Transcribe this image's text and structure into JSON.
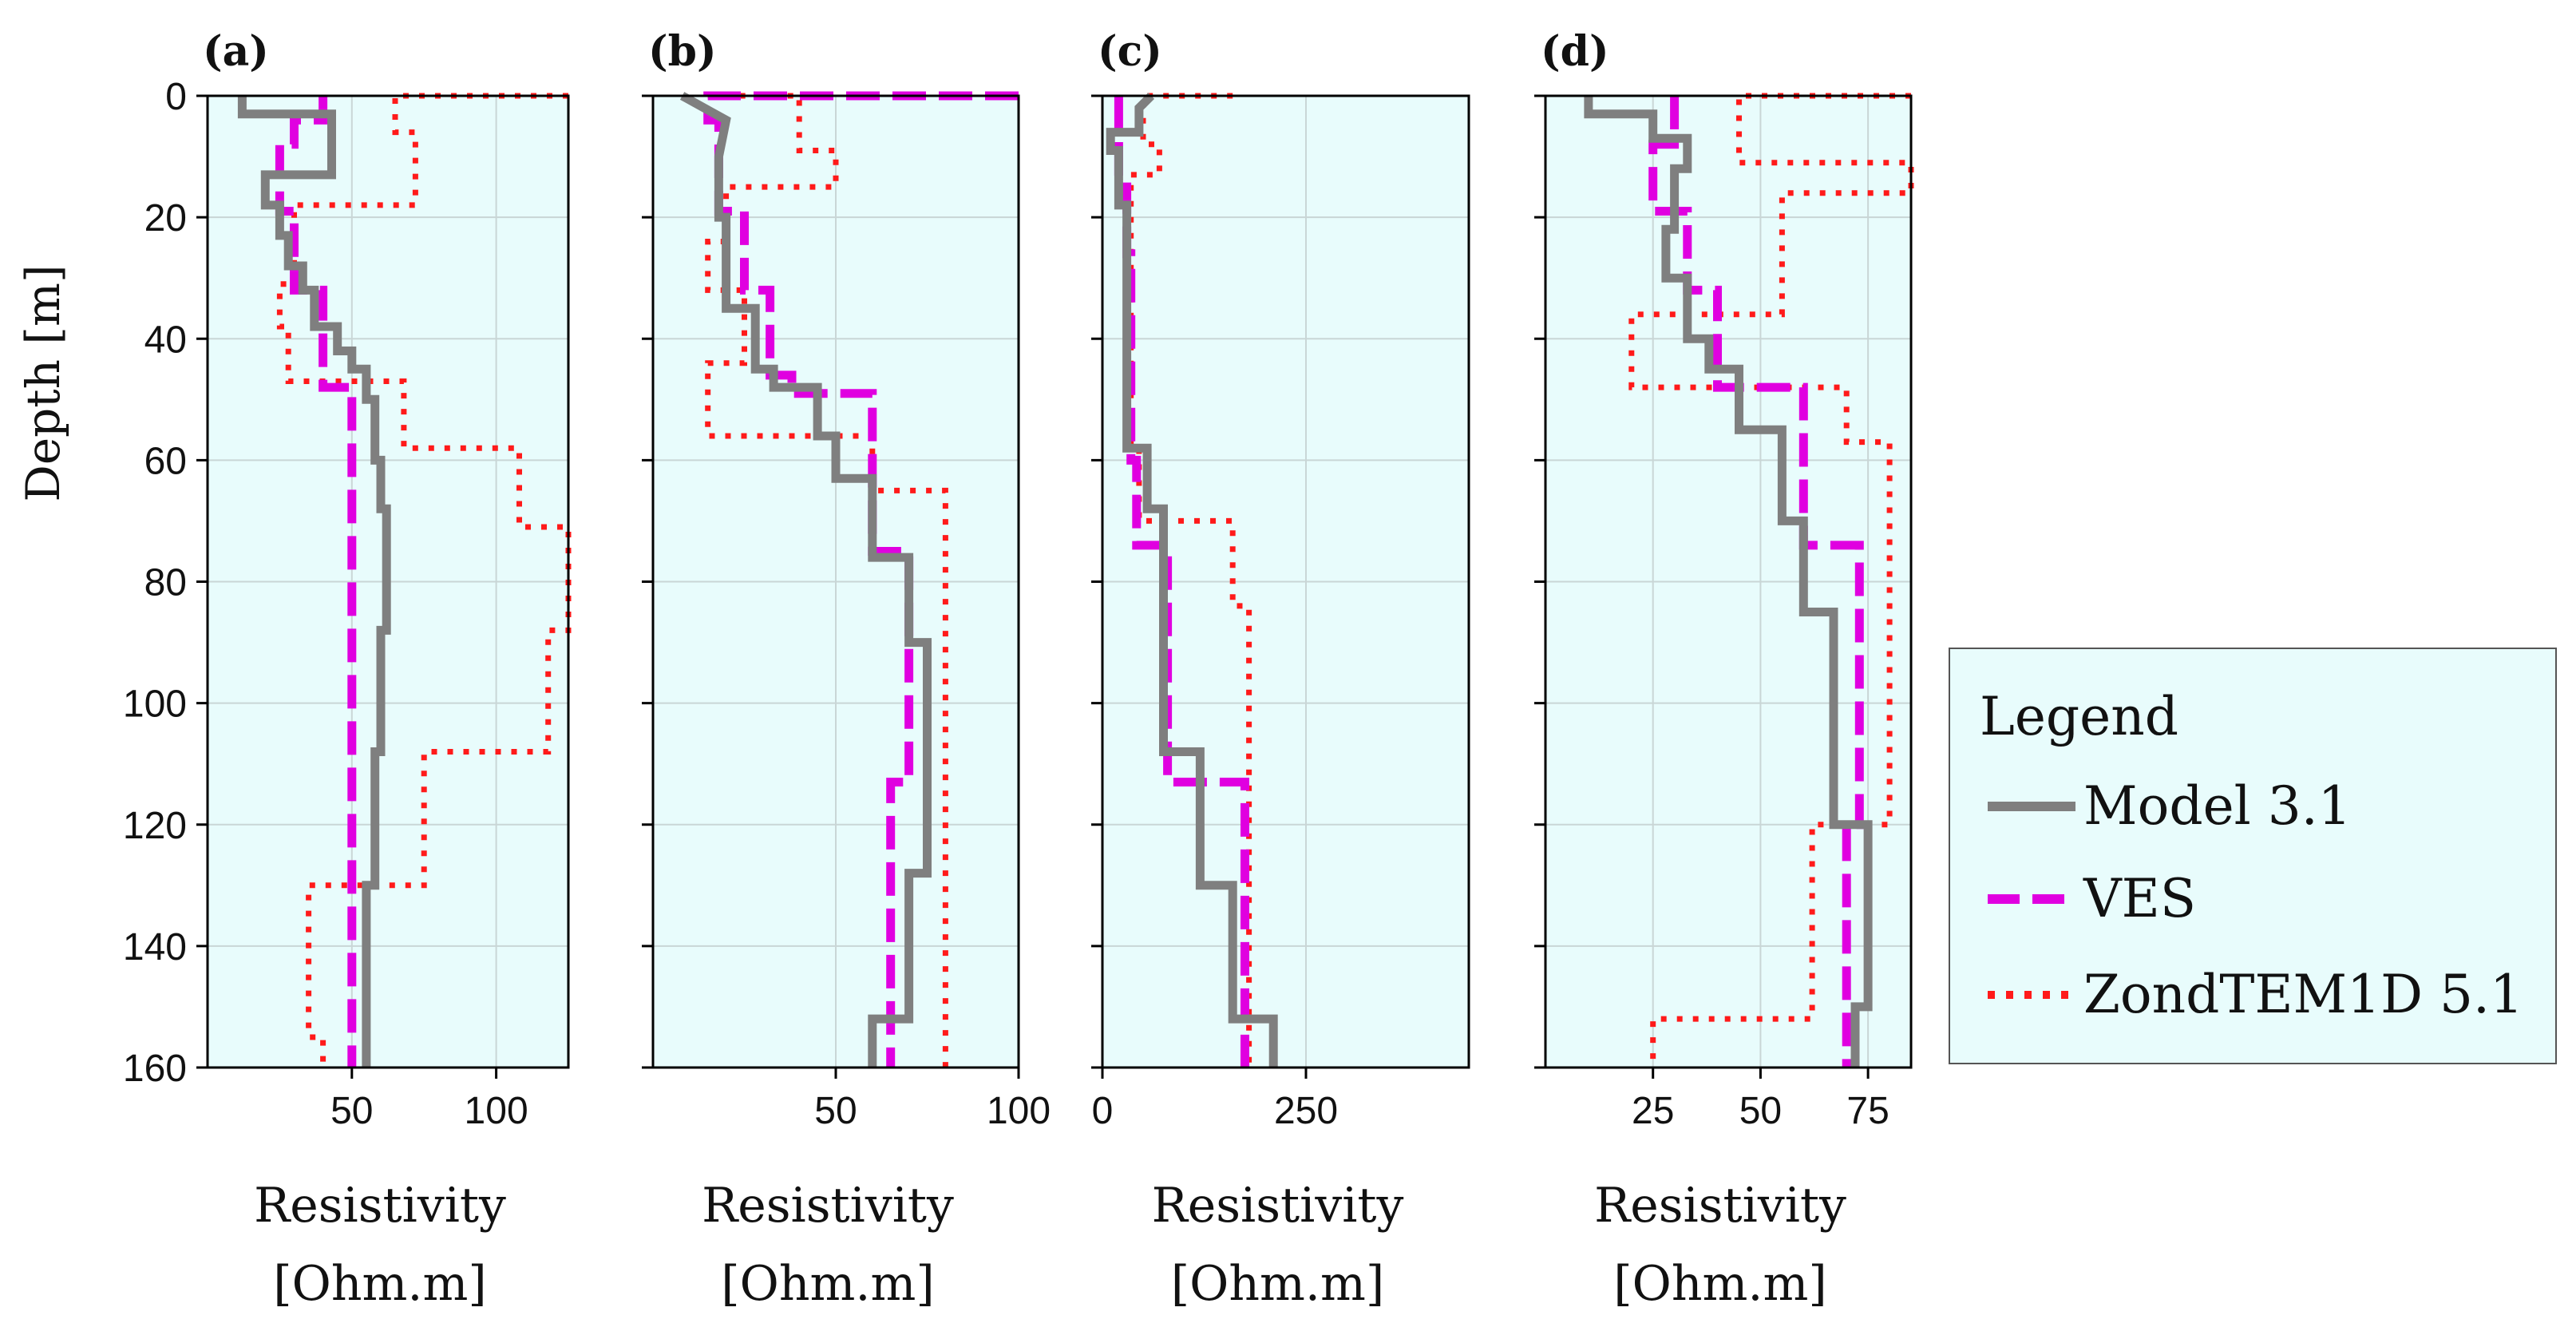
{
  "chart_data": [
    {
      "type": "line",
      "panel_label": "(a)",
      "ylabel": "Depth [m]",
      "xlabel_line1": "Resistivity",
      "xlabel_line2": "[Ohm.m]",
      "ylim": [
        0,
        160
      ],
      "xlim": [
        0,
        125
      ],
      "xticks": [
        50,
        100
      ],
      "yticks": [
        0,
        20,
        40,
        60,
        80,
        100,
        120,
        140,
        160
      ],
      "grid": true,
      "series": [
        {
          "name": "Model 3.1",
          "style": "solid",
          "values": [
            [
              12,
              0
            ],
            [
              12,
              3
            ],
            [
              43,
              3
            ],
            [
              43,
              13
            ],
            [
              20,
              13
            ],
            [
              20,
              18
            ],
            [
              25,
              18
            ],
            [
              25,
              23
            ],
            [
              28,
              23
            ],
            [
              28,
              28
            ],
            [
              33,
              28
            ],
            [
              33,
              32
            ],
            [
              37,
              32
            ],
            [
              37,
              38
            ],
            [
              45,
              38
            ],
            [
              45,
              42
            ],
            [
              50,
              42
            ],
            [
              50,
              45
            ],
            [
              55,
              45
            ],
            [
              55,
              50
            ],
            [
              58,
              50
            ],
            [
              58,
              60
            ],
            [
              60,
              60
            ],
            [
              60,
              68
            ],
            [
              62,
              68
            ],
            [
              62,
              88
            ],
            [
              60,
              88
            ],
            [
              60,
              108
            ],
            [
              58,
              108
            ],
            [
              58,
              130
            ],
            [
              55,
              130
            ],
            [
              55,
              160
            ]
          ]
        },
        {
          "name": "VES",
          "style": "dashed",
          "values": [
            [
              40,
              0
            ],
            [
              40,
              4
            ],
            [
              30,
              4
            ],
            [
              30,
              8
            ],
            [
              25,
              8
            ],
            [
              25,
              19
            ],
            [
              30,
              19
            ],
            [
              30,
              32
            ],
            [
              40,
              32
            ],
            [
              40,
              48
            ],
            [
              50,
              48
            ],
            [
              50,
              160
            ]
          ]
        },
        {
          "name": "ZondTEM1D 5.1",
          "style": "dotted",
          "values": [
            [
              125,
              0
            ],
            [
              65,
              0
            ],
            [
              65,
              6
            ],
            [
              72,
              6
            ],
            [
              72,
              18
            ],
            [
              30,
              18
            ],
            [
              30,
              31
            ],
            [
              25,
              31
            ],
            [
              25,
              38
            ],
            [
              28,
              38
            ],
            [
              28,
              47
            ],
            [
              68,
              47
            ],
            [
              68,
              58
            ],
            [
              108,
              58
            ],
            [
              108,
              71
            ],
            [
              125,
              71
            ],
            [
              125,
              88
            ],
            [
              118,
              88
            ],
            [
              118,
              108
            ],
            [
              75,
              108
            ],
            [
              75,
              130
            ],
            [
              35,
              130
            ],
            [
              35,
              155
            ],
            [
              40,
              155
            ],
            [
              40,
              160
            ]
          ]
        }
      ]
    },
    {
      "type": "line",
      "panel_label": "(b)",
      "ylabel": "",
      "xlabel_line1": "Resistivity",
      "xlabel_line2": "[Ohm.m]",
      "ylim": [
        0,
        160
      ],
      "xlim": [
        0,
        100
      ],
      "xticks": [
        50,
        100
      ],
      "yticks": [
        0,
        20,
        40,
        60,
        80,
        100,
        120,
        140,
        160
      ],
      "grid": true,
      "series": [
        {
          "name": "Model 3.1",
          "style": "solid",
          "values": [
            [
              8,
              0
            ],
            [
              20,
              4
            ],
            [
              18,
              10
            ],
            [
              18,
              20
            ],
            [
              20,
              20
            ],
            [
              20,
              35
            ],
            [
              28,
              35
            ],
            [
              28,
              45
            ],
            [
              33,
              45
            ],
            [
              33,
              48
            ],
            [
              45,
              48
            ],
            [
              45,
              56
            ],
            [
              50,
              56
            ],
            [
              50,
              63
            ],
            [
              60,
              63
            ],
            [
              60,
              76
            ],
            [
              70,
              76
            ],
            [
              70,
              90
            ],
            [
              75,
              90
            ],
            [
              75,
              128
            ],
            [
              70,
              128
            ],
            [
              70,
              152
            ],
            [
              60,
              152
            ],
            [
              60,
              160
            ]
          ]
        },
        {
          "name": "VES",
          "style": "dashed",
          "values": [
            [
              100,
              0
            ],
            [
              15,
              0
            ],
            [
              15,
              4
            ],
            [
              18,
              4
            ],
            [
              18,
              19
            ],
            [
              25,
              19
            ],
            [
              25,
              32
            ],
            [
              32,
              32
            ],
            [
              32,
              46
            ],
            [
              38,
              46
            ],
            [
              38,
              49
            ],
            [
              60,
              49
            ],
            [
              60,
              75
            ],
            [
              70,
              75
            ],
            [
              70,
              113
            ],
            [
              65,
              113
            ],
            [
              65,
              160
            ]
          ]
        },
        {
          "name": "ZondTEM1D 5.1",
          "style": "dotted",
          "values": [
            [
              15,
              0
            ],
            [
              40,
              0
            ],
            [
              40,
              9
            ],
            [
              50,
              9
            ],
            [
              50,
              15
            ],
            [
              20,
              15
            ],
            [
              20,
              24
            ],
            [
              15,
              24
            ],
            [
              15,
              32
            ],
            [
              25,
              32
            ],
            [
              25,
              44
            ],
            [
              15,
              44
            ],
            [
              15,
              56
            ],
            [
              60,
              56
            ],
            [
              60,
              65
            ],
            [
              80,
              65
            ],
            [
              80,
              160
            ]
          ]
        }
      ]
    },
    {
      "type": "line",
      "panel_label": "(c)",
      "ylabel": "",
      "xlabel_line1": "Resistivity",
      "xlabel_line2": "[Ohm.m]",
      "ylim": [
        0,
        160
      ],
      "xlim": [
        0,
        450
      ],
      "xticks": [
        0,
        250
      ],
      "yticks": [
        0,
        20,
        40,
        60,
        80,
        100,
        120,
        140,
        160
      ],
      "grid": true,
      "series": [
        {
          "name": "Model 3.1",
          "style": "solid",
          "values": [
            [
              60,
              0
            ],
            [
              45,
              2
            ],
            [
              45,
              6
            ],
            [
              10,
              6
            ],
            [
              10,
              9
            ],
            [
              20,
              9
            ],
            [
              20,
              18
            ],
            [
              30,
              18
            ],
            [
              30,
              58
            ],
            [
              55,
              58
            ],
            [
              55,
              68
            ],
            [
              75,
              68
            ],
            [
              75,
              108
            ],
            [
              120,
              108
            ],
            [
              120,
              130
            ],
            [
              160,
              130
            ],
            [
              160,
              152
            ],
            [
              210,
              152
            ],
            [
              210,
              160
            ]
          ]
        },
        {
          "name": "VES",
          "style": "dashed",
          "values": [
            [
              20,
              0
            ],
            [
              20,
              15
            ],
            [
              30,
              15
            ],
            [
              30,
              26
            ],
            [
              35,
              26
            ],
            [
              35,
              60
            ],
            [
              42,
              60
            ],
            [
              42,
              74
            ],
            [
              80,
              74
            ],
            [
              80,
              113
            ],
            [
              175,
              113
            ],
            [
              175,
              160
            ]
          ]
        },
        {
          "name": "ZondTEM1D 5.1",
          "style": "dotted",
          "values": [
            [
              160,
              0
            ],
            [
              50,
              0
            ],
            [
              50,
              8
            ],
            [
              70,
              8
            ],
            [
              70,
              13
            ],
            [
              35,
              13
            ],
            [
              35,
              58
            ],
            [
              45,
              58
            ],
            [
              45,
              70
            ],
            [
              160,
              70
            ],
            [
              160,
              84
            ],
            [
              180,
              84
            ],
            [
              180,
              160
            ]
          ]
        }
      ]
    },
    {
      "type": "line",
      "panel_label": "(d)",
      "ylabel": "",
      "xlabel_line1": "Resistivity",
      "xlabel_line2": "[Ohm.m]",
      "ylim": [
        0,
        160
      ],
      "xlim": [
        0,
        85
      ],
      "xticks": [
        25,
        50,
        75
      ],
      "yticks": [
        0,
        20,
        40,
        60,
        80,
        100,
        120,
        140,
        160
      ],
      "grid": true,
      "series": [
        {
          "name": "Model 3.1",
          "style": "solid",
          "values": [
            [
              10,
              0
            ],
            [
              10,
              3
            ],
            [
              25,
              3
            ],
            [
              25,
              7
            ],
            [
              33,
              7
            ],
            [
              33,
              12
            ],
            [
              30,
              12
            ],
            [
              30,
              22
            ],
            [
              28,
              22
            ],
            [
              28,
              30
            ],
            [
              33,
              30
            ],
            [
              33,
              40
            ],
            [
              38,
              40
            ],
            [
              38,
              45
            ],
            [
              45,
              45
            ],
            [
              45,
              55
            ],
            [
              55,
              55
            ],
            [
              55,
              70
            ],
            [
              60,
              70
            ],
            [
              60,
              85
            ],
            [
              67,
              85
            ],
            [
              67,
              120
            ],
            [
              75,
              120
            ],
            [
              75,
              150
            ],
            [
              72,
              150
            ],
            [
              72,
              160
            ]
          ]
        },
        {
          "name": "VES",
          "style": "dashed",
          "values": [
            [
              30,
              0
            ],
            [
              30,
              8
            ],
            [
              25,
              8
            ],
            [
              25,
              19
            ],
            [
              33,
              19
            ],
            [
              33,
              32
            ],
            [
              40,
              32
            ],
            [
              40,
              48
            ],
            [
              60,
              48
            ],
            [
              60,
              74
            ],
            [
              73,
              74
            ],
            [
              73,
              120
            ],
            [
              70,
              120
            ],
            [
              70,
              160
            ]
          ]
        },
        {
          "name": "ZondTEM1D 5.1",
          "style": "dotted",
          "values": [
            [
              85,
              0
            ],
            [
              45,
              0
            ],
            [
              45,
              11
            ],
            [
              85,
              11
            ],
            [
              85,
              16
            ],
            [
              55,
              16
            ],
            [
              55,
              36
            ],
            [
              20,
              36
            ],
            [
              20,
              48
            ],
            [
              70,
              48
            ],
            [
              70,
              57
            ],
            [
              80,
              57
            ],
            [
              80,
              120
            ],
            [
              62,
              120
            ],
            [
              62,
              152
            ],
            [
              25,
              152
            ],
            [
              25,
              160
            ]
          ]
        }
      ]
    }
  ],
  "legend": {
    "title": "Legend",
    "entries": [
      {
        "label": "Model 3.1",
        "style": "solid"
      },
      {
        "label": "VES",
        "style": "dashed"
      },
      {
        "label": "ZondTEM1D 5.1",
        "style": "dotted"
      }
    ]
  },
  "colors": {
    "panel_bg": "#e8fcfc",
    "grid": "#c9d6d6",
    "model": "#7f7f7f",
    "ves": "#e000e0",
    "zond": "#ff1a1a",
    "axis": "#000000",
    "legend_bg": "#e8fcfc",
    "legend_border": "#555555"
  }
}
